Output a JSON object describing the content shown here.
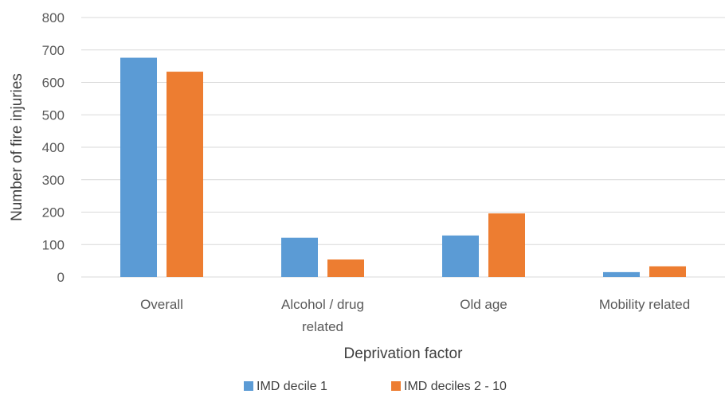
{
  "chart_data": {
    "type": "bar",
    "title": "",
    "xlabel": "Deprivation factor",
    "ylabel": "Number of fire injuries",
    "ylim": [
      0,
      800
    ],
    "yticks": [
      0,
      100,
      200,
      300,
      400,
      500,
      600,
      700,
      800
    ],
    "grid": true,
    "legend_position": "bottom",
    "categories": [
      [
        "Overall"
      ],
      [
        "Alcohol / drug",
        "related"
      ],
      [
        "Old age"
      ],
      [
        "Mobility related"
      ]
    ],
    "series": [
      {
        "name": "IMD decile 1",
        "color": "#5b9bd5",
        "values": [
          676,
          121,
          128,
          15
        ]
      },
      {
        "name": "IMD deciles 2 - 10",
        "color": "#ed7d31",
        "values": [
          633,
          54,
          196,
          33
        ]
      }
    ]
  }
}
